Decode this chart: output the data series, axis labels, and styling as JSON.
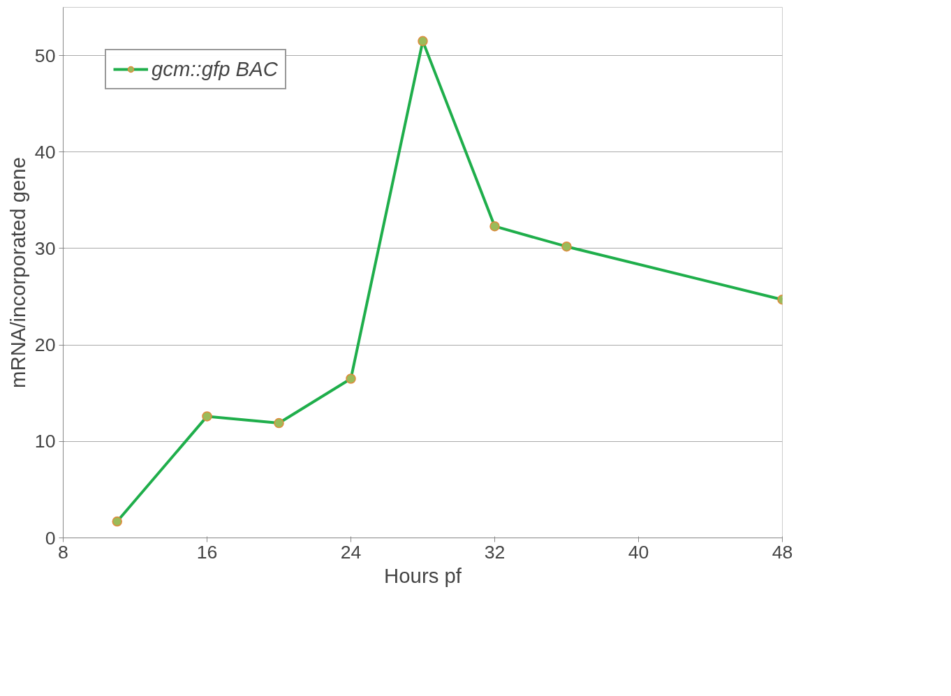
{
  "chart_data": {
    "type": "line",
    "xlabel": "Hours pf",
    "ylabel": "mRNA/incorporated gene",
    "x": [
      11,
      16,
      20,
      24,
      28,
      32,
      36,
      48
    ],
    "series": [
      {
        "name": "gcm::gfp BAC",
        "color": "#1fae4b",
        "values": [
          1.7,
          12.6,
          11.9,
          16.5,
          51.5,
          32.3,
          30.2,
          24.7
        ]
      }
    ],
    "xlim": [
      8,
      48
    ],
    "xticks": [
      8,
      16,
      24,
      32,
      40,
      48
    ],
    "ylim": [
      0,
      55
    ],
    "yticks": [
      0,
      10,
      20,
      30,
      40,
      50
    ],
    "grid": "y",
    "legend": "top left",
    "marker": "circle",
    "line_style": "solid"
  }
}
